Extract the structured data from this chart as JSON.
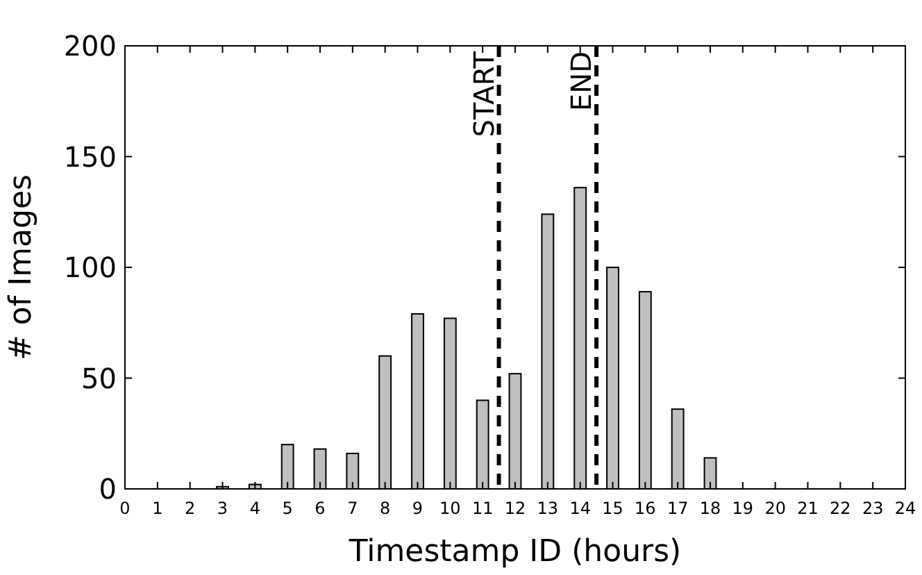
{
  "chart_data": {
    "type": "bar",
    "xlabel": "Timestamp ID (hours)",
    "ylabel": "# of Images",
    "x": [
      3,
      4,
      5,
      6,
      7,
      8,
      9,
      10,
      11,
      12,
      13,
      14,
      15,
      16,
      17,
      18
    ],
    "values": [
      1,
      2,
      20,
      18,
      16,
      60,
      79,
      77,
      40,
      52,
      124,
      136,
      100,
      89,
      36,
      14
    ],
    "color": "#bfbfbf",
    "xlim": [
      0,
      24
    ],
    "xticks": [
      0,
      1,
      2,
      3,
      4,
      5,
      6,
      7,
      8,
      9,
      10,
      11,
      12,
      13,
      14,
      15,
      16,
      17,
      18,
      19,
      20,
      21,
      22,
      23,
      24
    ],
    "ylim": [
      0,
      200
    ],
    "yticks": [
      0,
      50,
      100,
      150,
      200
    ],
    "ref_lines": [
      {
        "axis": "x",
        "value": 11.5,
        "label": "START",
        "line_style": "dashed",
        "color": "#000000"
      },
      {
        "axis": "x",
        "value": 14.5,
        "label": "END",
        "line_style": "dashed",
        "color": "#000000"
      }
    ],
    "grid": false
  }
}
